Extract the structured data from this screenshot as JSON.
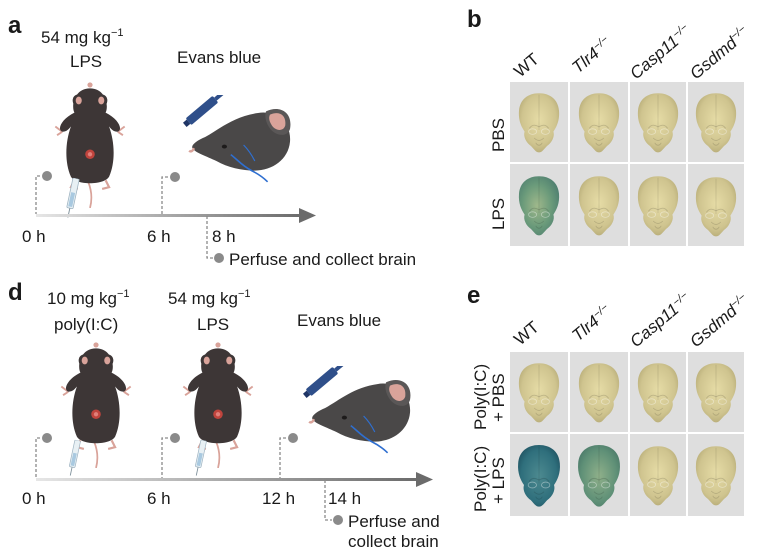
{
  "panels": {
    "a": "a",
    "b": "b",
    "d": "d",
    "e": "e"
  },
  "panel_a": {
    "dose": "54 mg kg",
    "dose_sup": "−1",
    "agent": "LPS",
    "injection": "Evans blue",
    "times": [
      "0 h",
      "6 h",
      "8 h"
    ],
    "endpoint": "Perfuse and collect brain"
  },
  "panel_d": {
    "dose1": "10 mg kg",
    "dose1_sup": "−1",
    "agent1": "poly(I:C)",
    "dose2": "54 mg kg",
    "dose2_sup": "−1",
    "agent2": "LPS",
    "injection": "Evans blue",
    "times": [
      "0 h",
      "6 h",
      "12 h",
      "14 h"
    ],
    "endpoint_line1": "Perfuse and",
    "endpoint_line2": "collect brain"
  },
  "panel_b": {
    "columns": [
      {
        "base": "WT",
        "sup": ""
      },
      {
        "base": "Tlr4",
        "sup": "−/−"
      },
      {
        "base": "Casp11",
        "sup": "−/−"
      },
      {
        "base": "Gsdmd",
        "sup": "−/−"
      }
    ],
    "rows": [
      "PBS",
      "LPS"
    ]
  },
  "panel_e": {
    "columns": [
      {
        "base": "WT",
        "sup": ""
      },
      {
        "base": "Tlr4",
        "sup": "−/−"
      },
      {
        "base": "Casp11",
        "sup": "−/−"
      },
      {
        "base": "Gsdmd",
        "sup": "−/−"
      }
    ],
    "rows": [
      {
        "line1": "Poly(I:C)",
        "line2": "+ PBS"
      },
      {
        "line1": "Poly(I:C)",
        "line2": "+ LPS"
      }
    ]
  },
  "colors": {
    "mouse_body": "#3d3636",
    "mouse_pink": "#d9a39a",
    "brain_normal": "#cfc48f",
    "brain_blue_strong": "#2f6f7c",
    "brain_blue_mild": "#6a9a7a",
    "syringe_blue": "#2f4f8a"
  }
}
